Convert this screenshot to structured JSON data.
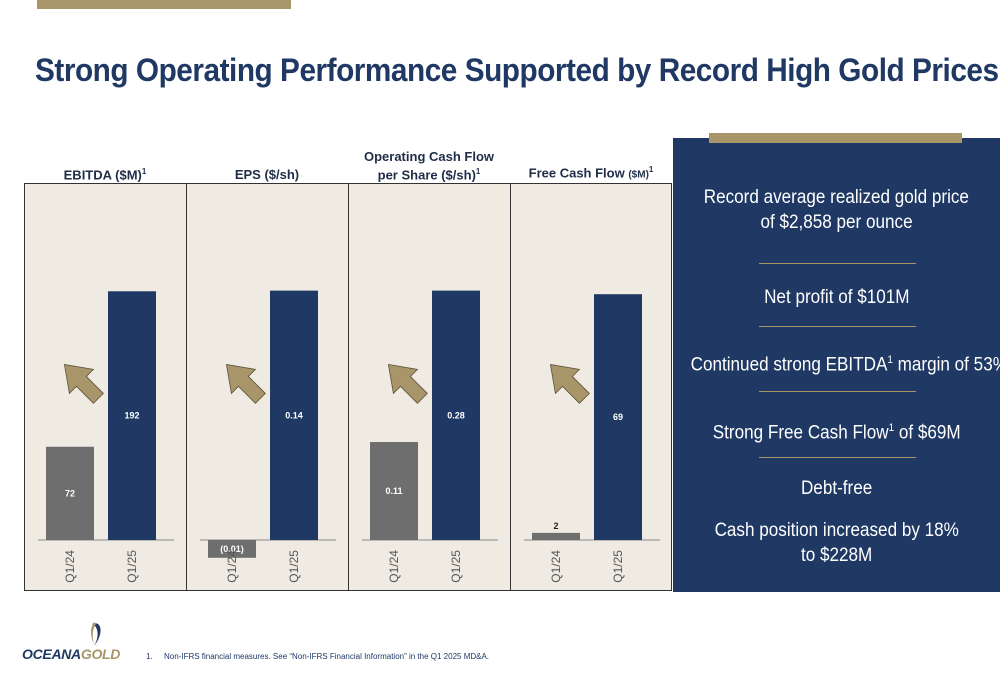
{
  "title": "Strong Operating Performance Supported by Record High Gold Prices",
  "colors": {
    "navy": "#1f3864",
    "gold": "#a8956a",
    "gray": "#6e6e6e",
    "panel_bg": "#efebe2"
  },
  "chart_titles": [
    {
      "line1": "EBITDA ($M)",
      "sup": "1"
    },
    {
      "line1": "EPS ($/sh)"
    },
    {
      "line1": "Operating Cash Flow",
      "line2": "per Share ($/sh)",
      "sup": "1"
    },
    {
      "line1": "Free Cash Flow",
      "small": "($M)",
      "sup": "1"
    }
  ],
  "chart_data": [
    {
      "type": "bar",
      "title": "EBITDA ($M)",
      "categories": [
        "Q1/24",
        "Q1/25"
      ],
      "values": [
        72,
        192
      ],
      "labels": [
        "72",
        "192"
      ],
      "colors": [
        "#6e6e6e",
        "#1f3864"
      ],
      "ylim": [
        0,
        220
      ],
      "trend_icon": "up-right-arrow-icon"
    },
    {
      "type": "bar",
      "title": "EPS ($/sh)",
      "categories": [
        "Q1/24",
        "Q1/25"
      ],
      "values": [
        -0.01,
        0.14
      ],
      "labels": [
        "(0.01)",
        "0.14"
      ],
      "colors": [
        "#6e6e6e",
        "#1f3864"
      ],
      "ylim": [
        -0.01,
        0.16
      ],
      "trend_icon": "up-right-arrow-icon"
    },
    {
      "type": "bar",
      "title": "Operating Cash Flow per Share ($/sh)",
      "categories": [
        "Q1/24",
        "Q1/25"
      ],
      "values": [
        0.11,
        0.28
      ],
      "labels": [
        "0.11",
        "0.28"
      ],
      "colors": [
        "#6e6e6e",
        "#1f3864"
      ],
      "ylim": [
        0,
        0.32
      ],
      "trend_icon": "up-right-arrow-icon"
    },
    {
      "type": "bar",
      "title": "Free Cash Flow ($M)",
      "categories": [
        "Q1/24",
        "Q1/25"
      ],
      "values": [
        2,
        69
      ],
      "labels": [
        "2",
        "69"
      ],
      "colors": [
        "#6e6e6e",
        "#1f3864"
      ],
      "ylim": [
        0,
        80
      ],
      "trend_icon": "up-right-arrow-icon"
    }
  ],
  "highlights": {
    "h1_line1": "Record average realized gold price",
    "h1_line2": "of $2,858 per ounce",
    "h2": "Net profit of $101M",
    "h3_pre": "Continued strong EBITDA",
    "h3_sup": "1",
    "h3_post": " margin of 53%",
    "h4_pre": "Strong Free Cash Flow",
    "h4_sup": "1",
    "h4_post": " of $69M",
    "h5": "Debt-free",
    "h6_line1": "Cash position increased by 18%",
    "h6_line2": "to $228M"
  },
  "logo": {
    "part1": "OCEANA",
    "part2": "GOLD"
  },
  "footnote": {
    "number": "1.",
    "text": "Non-IFRS financial measures. See “Non-IFRS Financial Information” in the Q1 2025 MD&A."
  }
}
